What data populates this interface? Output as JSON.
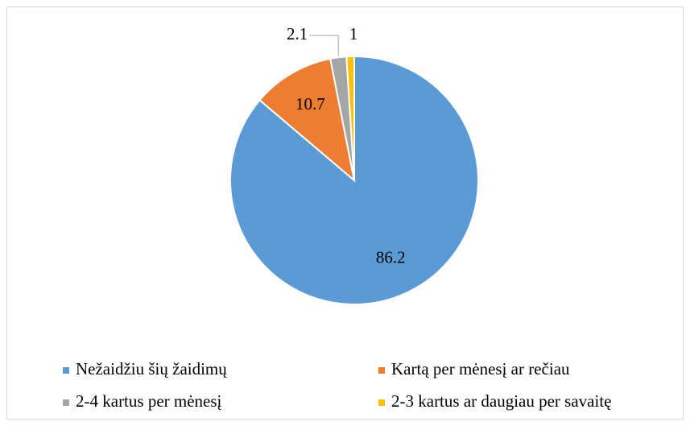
{
  "chart_data": {
    "type": "pie",
    "categories": [
      "Nežaidžiu šių žaidimų",
      "Kartą per mėnesį ar rečiau",
      "2-4 kartus per mėnesį",
      "2-3 kartus ar daugiau per savaitę"
    ],
    "values": [
      86.2,
      10.7,
      2.1,
      1
    ],
    "colors": [
      "#5b9bd5",
      "#ed7d31",
      "#a5a5a5",
      "#ffc000"
    ],
    "legend": "bottom"
  }
}
